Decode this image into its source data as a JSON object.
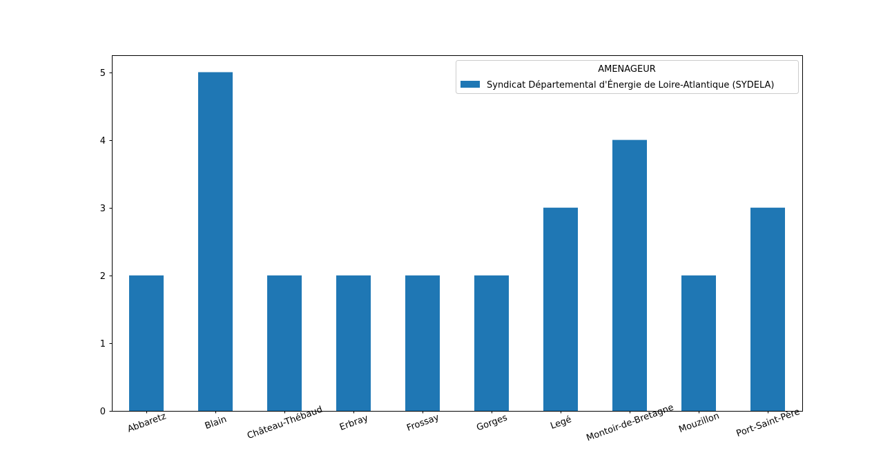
{
  "chart_data": {
    "type": "bar",
    "title": "",
    "xlabel": "",
    "ylabel": "",
    "categories": [
      "Abbaretz",
      "Blain",
      "Château-Thébaud",
      "Erbray",
      "Frossay",
      "Gorges",
      "Legé",
      "Montoir-de-Bretagne",
      "Mouzillon",
      "Port-Saint-Père"
    ],
    "series": [
      {
        "name": "Syndicat Départemental d'Énergie de Loire-Atlantique (SYDELA)",
        "values": [
          2,
          5,
          2,
          2,
          2,
          2,
          3,
          4,
          2,
          3
        ],
        "color": "#1f77b4"
      }
    ],
    "legend": {
      "title": "AMENAGEUR",
      "position": "top-right"
    },
    "ylim": [
      0,
      5.25
    ],
    "yticks": [
      0,
      1,
      2,
      3,
      4,
      5
    ],
    "grid": false,
    "x_tick_rotation_deg": -20
  }
}
